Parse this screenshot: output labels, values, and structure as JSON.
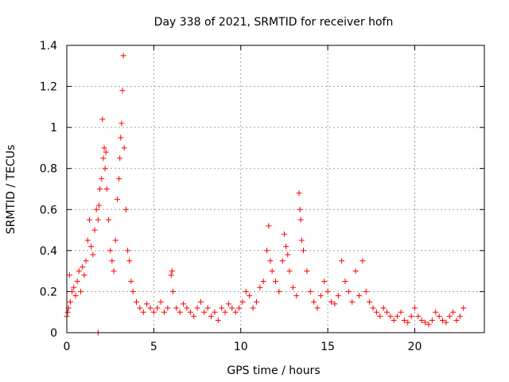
{
  "chart_data": {
    "type": "scatter",
    "title": "Day 338 of 2021, SRMTID for receiver hofn",
    "xlabel": "GPS time / hours",
    "ylabel": "SRMTID / TECUs",
    "xlim": [
      0,
      24
    ],
    "ylim": [
      0,
      1.4
    ],
    "xticks": [
      0,
      5,
      10,
      15,
      20
    ],
    "xtick_labels": [
      "0",
      "5",
      "10",
      "15",
      "20"
    ],
    "yticks": [
      0,
      0.2,
      0.4,
      0.6,
      0.8,
      1.0,
      1.2,
      1.4
    ],
    "ytick_labels": [
      "0",
      "0.2",
      "0.4",
      "0.6",
      "0.8",
      "1",
      "1.2",
      "1.4"
    ],
    "grid": true,
    "marker": "+",
    "marker_color": "#ff0000",
    "series": [
      {
        "name": "SRMTID",
        "x": [
          0.0,
          0.05,
          0.1,
          0.15,
          0.2,
          0.3,
          0.4,
          0.5,
          0.6,
          0.7,
          0.8,
          0.9,
          1.0,
          1.1,
          1.2,
          1.3,
          1.4,
          1.5,
          1.6,
          1.7,
          1.8,
          1.85,
          1.9,
          2.0,
          2.05,
          2.1,
          2.15,
          2.2,
          2.25,
          2.3,
          2.4,
          2.5,
          2.6,
          2.7,
          2.8,
          2.9,
          3.0,
          3.05,
          3.1,
          3.15,
          3.2,
          3.25,
          3.3,
          3.4,
          3.5,
          3.6,
          3.7,
          3.8,
          4.0,
          4.2,
          4.4,
          4.6,
          4.8,
          5.0,
          5.2,
          5.4,
          5.6,
          5.8,
          6.0,
          6.05,
          6.1,
          6.3,
          6.5,
          6.7,
          6.9,
          7.1,
          7.3,
          7.5,
          7.7,
          7.9,
          8.1,
          8.3,
          8.5,
          8.7,
          8.9,
          9.1,
          9.3,
          9.5,
          9.7,
          9.9,
          10.1,
          10.3,
          10.5,
          10.7,
          10.9,
          11.1,
          11.3,
          11.5,
          11.6,
          11.7,
          11.8,
          12.0,
          12.2,
          12.4,
          12.5,
          12.6,
          12.7,
          12.8,
          13.0,
          13.2,
          13.35,
          13.4,
          13.45,
          13.5,
          13.6,
          13.8,
          14.0,
          14.2,
          14.4,
          14.6,
          14.8,
          15.0,
          15.2,
          15.4,
          15.6,
          15.8,
          16.0,
          16.2,
          16.4,
          16.6,
          16.8,
          17.0,
          17.2,
          17.4,
          17.6,
          17.8,
          18.0,
          18.2,
          18.4,
          18.6,
          18.8,
          19.0,
          19.2,
          19.4,
          19.6,
          19.8,
          20.0,
          20.2,
          20.4,
          20.6,
          20.8,
          21.0,
          21.2,
          21.4,
          21.6,
          21.8,
          22.0,
          22.2,
          22.4,
          22.6,
          22.8,
          1.8
        ],
        "y": [
          0.08,
          0.1,
          0.12,
          0.28,
          0.15,
          0.2,
          0.22,
          0.18,
          0.25,
          0.3,
          0.2,
          0.32,
          0.28,
          0.35,
          0.45,
          0.55,
          0.42,
          0.38,
          0.5,
          0.6,
          0.55,
          0.62,
          0.7,
          0.75,
          1.04,
          0.85,
          0.9,
          0.8,
          0.88,
          0.7,
          0.55,
          0.4,
          0.35,
          0.3,
          0.45,
          0.65,
          0.75,
          0.85,
          0.95,
          1.02,
          1.18,
          1.35,
          0.9,
          0.6,
          0.4,
          0.35,
          0.25,
          0.2,
          0.15,
          0.12,
          0.1,
          0.14,
          0.12,
          0.1,
          0.12,
          0.15,
          0.1,
          0.12,
          0.28,
          0.3,
          0.2,
          0.12,
          0.1,
          0.14,
          0.12,
          0.1,
          0.08,
          0.12,
          0.15,
          0.1,
          0.12,
          0.08,
          0.1,
          0.06,
          0.12,
          0.1,
          0.14,
          0.12,
          0.1,
          0.12,
          0.15,
          0.2,
          0.18,
          0.12,
          0.15,
          0.22,
          0.25,
          0.4,
          0.52,
          0.35,
          0.3,
          0.25,
          0.2,
          0.35,
          0.48,
          0.42,
          0.38,
          0.3,
          0.22,
          0.18,
          0.68,
          0.6,
          0.55,
          0.45,
          0.4,
          0.3,
          0.2,
          0.15,
          0.12,
          0.18,
          0.25,
          0.2,
          0.15,
          0.14,
          0.18,
          0.35,
          0.25,
          0.2,
          0.15,
          0.3,
          0.18,
          0.35,
          0.2,
          0.15,
          0.12,
          0.1,
          0.08,
          0.12,
          0.1,
          0.08,
          0.06,
          0.08,
          0.1,
          0.06,
          0.05,
          0.08,
          0.12,
          0.08,
          0.06,
          0.05,
          0.04,
          0.06,
          0.1,
          0.08,
          0.06,
          0.05,
          0.08,
          0.1,
          0.06,
          0.08,
          0.12,
          0.0
        ]
      }
    ]
  }
}
